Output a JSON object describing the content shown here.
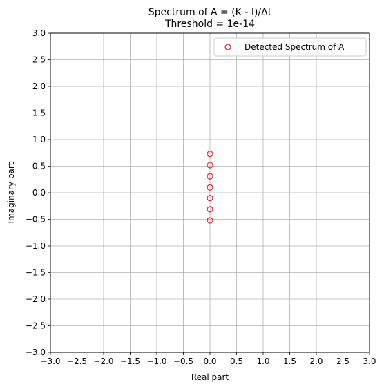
{
  "chart_data": {
    "type": "scatter",
    "title": "Spectrum of A = (K - I)/Δt",
    "subtitle": "Threshold = 1e-14",
    "xlabel": "Real part",
    "ylabel": "Imaginary part",
    "xlim": [
      -3.0,
      3.0
    ],
    "ylim": [
      -3.0,
      3.0
    ],
    "xticks": [
      "−3.0",
      "−2.5",
      "−2.0",
      "−1.5",
      "−1.0",
      "−0.5",
      "0.0",
      "0.5",
      "1.0",
      "1.5",
      "2.0",
      "2.5",
      "3.0"
    ],
    "yticks": [
      "−3.0",
      "−2.5",
      "−2.0",
      "−1.5",
      "−1.0",
      "−0.5",
      "0.0",
      "0.5",
      "1.0",
      "1.5",
      "2.0",
      "2.5",
      "3.0"
    ],
    "grid": true,
    "legend_position": "top-right",
    "series": [
      {
        "name": "Detected Spectrum of A",
        "marker": "open-circle",
        "color": "#e31a1c",
        "points": [
          {
            "x": 0.0,
            "y": 0.73
          },
          {
            "x": 0.0,
            "y": 0.52
          },
          {
            "x": 0.0,
            "y": 0.31
          },
          {
            "x": 0.0,
            "y": 0.1
          },
          {
            "x": 0.0,
            "y": -0.1
          },
          {
            "x": 0.0,
            "y": -0.31
          },
          {
            "x": 0.0,
            "y": -0.52
          }
        ]
      }
    ]
  }
}
